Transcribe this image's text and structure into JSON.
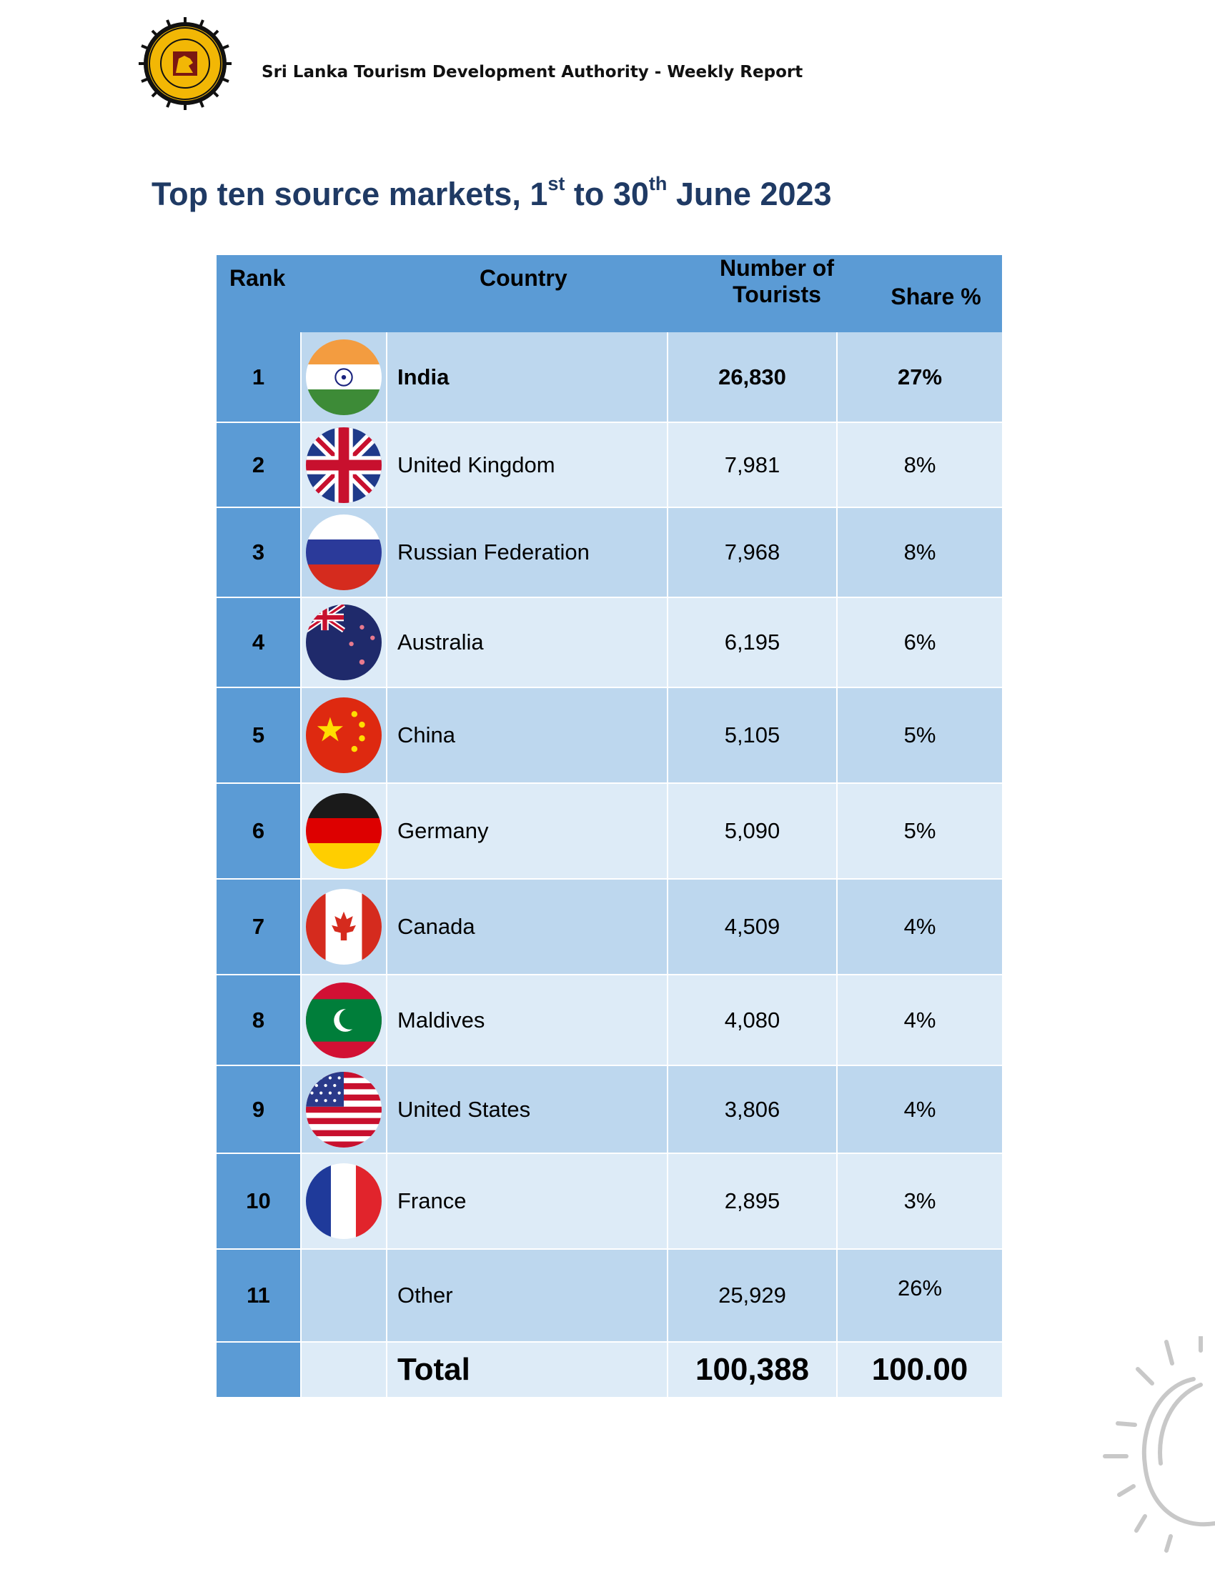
{
  "header": {
    "org_text": "Sri Lanka Tourism Development Authority - Weekly Report",
    "logo_icon": "sri-lanka-tourism-seal-icon"
  },
  "title": {
    "main": "Top ten source markets, 1",
    "sup1": "st",
    "mid": " to 30",
    "sup2": "th",
    "end": " June 2023"
  },
  "table": {
    "columns": {
      "rank": "Rank",
      "country": "Country",
      "number_line1": "Number of",
      "number_line2": "Tourists",
      "share": "Share %"
    },
    "rows": [
      {
        "rank": "1",
        "flag": "india-flag-icon",
        "country": "India",
        "tourists": "26,830",
        "share": "27%"
      },
      {
        "rank": "2",
        "flag": "uk-flag-icon",
        "country": "United Kingdom",
        "tourists": "7,981",
        "share": "8%"
      },
      {
        "rank": "3",
        "flag": "russia-flag-icon",
        "country": "Russian Federation",
        "tourists": "7,968",
        "share": "8%"
      },
      {
        "rank": "4",
        "flag": "australia-flag-icon",
        "country": "Australia",
        "tourists": "6,195",
        "share": "6%"
      },
      {
        "rank": "5",
        "flag": "china-flag-icon",
        "country": "China",
        "tourists": "5,105",
        "share": "5%"
      },
      {
        "rank": "6",
        "flag": "germany-flag-icon",
        "country": "Germany",
        "tourists": "5,090",
        "share": "5%"
      },
      {
        "rank": "7",
        "flag": "canada-flag-icon",
        "country": "Canada",
        "tourists": "4,509",
        "share": "4%"
      },
      {
        "rank": "8",
        "flag": "maldives-flag-icon",
        "country": "Maldives",
        "tourists": "4,080",
        "share": "4%"
      },
      {
        "rank": "9",
        "flag": "usa-flag-icon",
        "country": "United States",
        "tourists": "3,806",
        "share": "4%"
      },
      {
        "rank": "10",
        "flag": "france-flag-icon",
        "country": "France",
        "tourists": "2,895",
        "share": "3%"
      },
      {
        "rank": "11",
        "flag": "",
        "country": "Other",
        "tourists": "25,929",
        "share": "26%"
      }
    ],
    "total": {
      "label": "Total",
      "tourists": "100,388",
      "share": "100.00"
    }
  },
  "decor": {
    "sun_icon": "sun-sketch-icon"
  }
}
